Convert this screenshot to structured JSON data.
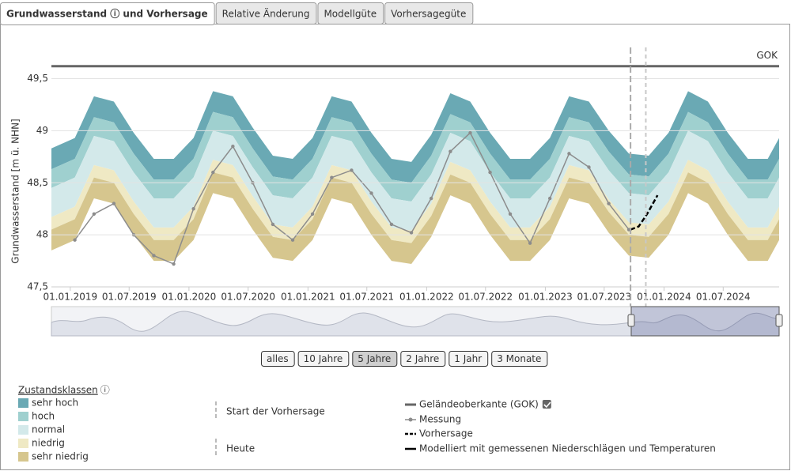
{
  "tabs": [
    "Grundwasserstand ⓘ und Vorhersage",
    "Relative Änderung",
    "Modellgüte",
    "Vorhersagegüte"
  ],
  "range_buttons": [
    "alles",
    "10 Jahre",
    "5 Jahre",
    "2 Jahre",
    "1 Jahr",
    "3 Monate"
  ],
  "range_selected_index": 2,
  "chart_data": {
    "type": "band",
    "y_label": "Grundwasserstand [m ü. NHN]",
    "ylim": [
      47.5,
      49.8
    ],
    "yticks": [
      {
        "value": 47.5,
        "label": "47,5"
      },
      48,
      {
        "value": 48.5,
        "label": "48,5"
      },
      49,
      {
        "value": 49.5,
        "label": "49,5"
      }
    ],
    "grid": true,
    "xlim": [
      "2018-11-04",
      "2024-12-20"
    ],
    "xticks": [
      {
        "value": "2019-01-01",
        "label": "01.01.2019"
      },
      {
        "value": "2019-07-01",
        "label": "01.07.2019"
      },
      {
        "value": "2020-01-01",
        "label": "01.01.2020"
      },
      {
        "value": "2020-07-01",
        "label": "01.07.2020"
      },
      {
        "value": "2021-01-01",
        "label": "01.01.2021"
      },
      {
        "value": "2021-07-01",
        "label": "01.07.2021"
      },
      {
        "value": "2022-01-01",
        "label": "01.01.2022"
      },
      {
        "value": "2022-07-01",
        "label": "01.07.2022"
      },
      {
        "value": "2023-01-01",
        "label": "01.01.2023"
      },
      {
        "value": "2023-07-01",
        "label": "01.07.2023"
      },
      {
        "value": "2024-01-01",
        "label": "01.01.2024"
      },
      {
        "value": "2024-07-01",
        "label": "01.07.2024"
      }
    ],
    "x": [
      "2018-11-04",
      "2019-01-15",
      "2019-03-15",
      "2019-05-15",
      "2019-07-15",
      "2019-09-15",
      "2019-11-15",
      "2020-01-15",
      "2020-03-15",
      "2020-05-15",
      "2020-07-15",
      "2020-09-15",
      "2020-11-15",
      "2021-01-15",
      "2021-03-15",
      "2021-05-15",
      "2021-07-15",
      "2021-09-15",
      "2021-11-15",
      "2022-01-15",
      "2022-03-15",
      "2022-05-15",
      "2022-07-15",
      "2022-09-15",
      "2022-11-15",
      "2023-01-15",
      "2023-03-15",
      "2023-05-15",
      "2023-07-15",
      "2023-09-15",
      "2023-11-15",
      "2024-01-15",
      "2024-03-15",
      "2024-05-15",
      "2024-07-15",
      "2024-09-15",
      "2024-11-15",
      "2024-12-20"
    ],
    "legend_title": "Zustandsklassen",
    "classes": [
      {
        "name": "sehr hoch",
        "color": "#6aa9b4"
      },
      {
        "name": "hoch",
        "color": "#9fd0cf"
      },
      {
        "name": "normal",
        "color": "#d3e9ea"
      },
      {
        "name": "niedrig",
        "color": "#efe9c4"
      },
      {
        "name": "sehr niedrig",
        "color": "#d6c68e"
      }
    ],
    "class_bounds": [
      [
        47.85,
        47.95,
        48.35,
        48.3,
        48.0,
        47.75,
        47.75,
        47.95,
        48.4,
        48.35,
        48.05,
        47.78,
        47.75,
        47.95,
        48.35,
        48.3,
        48.0,
        47.75,
        47.72,
        47.98,
        48.38,
        48.3,
        48.0,
        47.75,
        47.75,
        47.95,
        48.35,
        48.3,
        48.02,
        47.8,
        47.78,
        48.0,
        48.4,
        48.3,
        48.0,
        47.75,
        47.75,
        47.95
      ],
      [
        48.05,
        48.15,
        48.55,
        48.5,
        48.2,
        47.95,
        47.95,
        48.15,
        48.6,
        48.55,
        48.25,
        47.98,
        47.95,
        48.15,
        48.55,
        48.5,
        48.2,
        47.95,
        47.92,
        48.18,
        48.58,
        48.5,
        48.2,
        47.95,
        47.95,
        48.15,
        48.55,
        48.5,
        48.22,
        48.0,
        47.98,
        48.2,
        48.6,
        48.5,
        48.2,
        47.95,
        47.95,
        48.15
      ],
      [
        48.17,
        48.27,
        48.67,
        48.62,
        48.32,
        48.07,
        48.07,
        48.27,
        48.72,
        48.67,
        48.37,
        48.1,
        48.07,
        48.27,
        48.67,
        48.62,
        48.32,
        48.07,
        48.04,
        48.3,
        48.7,
        48.62,
        48.32,
        48.07,
        48.07,
        48.27,
        48.67,
        48.62,
        48.34,
        48.12,
        48.1,
        48.32,
        48.72,
        48.62,
        48.32,
        48.07,
        48.07,
        48.27
      ],
      [
        48.45,
        48.55,
        48.95,
        48.9,
        48.6,
        48.35,
        48.35,
        48.55,
        49.0,
        48.95,
        48.65,
        48.38,
        48.35,
        48.55,
        48.95,
        48.9,
        48.6,
        48.35,
        48.32,
        48.58,
        48.98,
        48.9,
        48.6,
        48.35,
        48.35,
        48.55,
        48.95,
        48.9,
        48.62,
        48.4,
        48.38,
        48.6,
        49.0,
        48.9,
        48.6,
        48.35,
        48.35,
        48.55
      ],
      [
        48.63,
        48.73,
        49.13,
        49.08,
        48.78,
        48.53,
        48.53,
        48.73,
        49.18,
        49.13,
        48.83,
        48.56,
        48.53,
        48.73,
        49.13,
        49.08,
        48.78,
        48.53,
        48.5,
        48.76,
        49.16,
        49.08,
        48.78,
        48.53,
        48.53,
        48.73,
        49.13,
        49.08,
        48.8,
        48.58,
        48.56,
        48.78,
        49.18,
        49.08,
        48.78,
        48.53,
        48.53,
        48.73
      ],
      [
        48.83,
        48.93,
        49.33,
        49.28,
        48.98,
        48.73,
        48.73,
        48.93,
        49.38,
        49.33,
        49.03,
        48.76,
        48.73,
        48.93,
        49.33,
        49.28,
        48.98,
        48.73,
        48.7,
        48.96,
        49.36,
        49.28,
        48.98,
        48.73,
        48.73,
        48.93,
        49.33,
        49.28,
        49.0,
        48.78,
        48.76,
        48.98,
        49.38,
        49.28,
        48.98,
        48.73,
        48.73,
        48.93
      ]
    ],
    "gok": {
      "name": "Geländeoberkante (GOK)",
      "label": "GOK",
      "value": 49.62,
      "color": "#666666"
    },
    "series": [
      {
        "name": "Messung",
        "color": "#8c8c8c",
        "markers": true,
        "dashed": false,
        "x": [
          "2019-01-15",
          "2019-03-15",
          "2019-05-15",
          "2019-07-15",
          "2019-09-15",
          "2019-11-15",
          "2020-01-15",
          "2020-03-15",
          "2020-05-15",
          "2020-07-15",
          "2020-09-15",
          "2020-11-15",
          "2021-01-15",
          "2021-03-15",
          "2021-05-15",
          "2021-07-15",
          "2021-09-15",
          "2021-11-15",
          "2022-01-15",
          "2022-03-15",
          "2022-05-15",
          "2022-07-15",
          "2022-09-15",
          "2022-11-15",
          "2023-01-15",
          "2023-03-15",
          "2023-05-15",
          "2023-07-15",
          "2023-09-15"
        ],
        "values": [
          47.95,
          48.2,
          48.3,
          48.0,
          47.8,
          47.72,
          48.25,
          48.6,
          48.85,
          48.5,
          48.1,
          47.95,
          48.2,
          48.55,
          48.62,
          48.4,
          48.1,
          48.02,
          48.35,
          48.8,
          48.98,
          48.6,
          48.2,
          47.92,
          48.35,
          48.78,
          48.65,
          48.3,
          48.05
        ]
      },
      {
        "name": "Vorhersage",
        "color": "#000000",
        "markers": false,
        "dashed": true,
        "x": [
          "2023-09-20",
          "2023-10-15",
          "2023-11-10",
          "2023-12-12"
        ],
        "values": [
          48.05,
          48.08,
          48.2,
          48.38
        ]
      }
    ],
    "model_legend": "Modelliert mit gemessenen Niederschlägen und Temperaturen",
    "markers": [
      {
        "name": "Start der Vorhersage",
        "x": "2023-09-20"
      },
      {
        "name": "Heute",
        "x": "2023-11-06"
      }
    ]
  }
}
